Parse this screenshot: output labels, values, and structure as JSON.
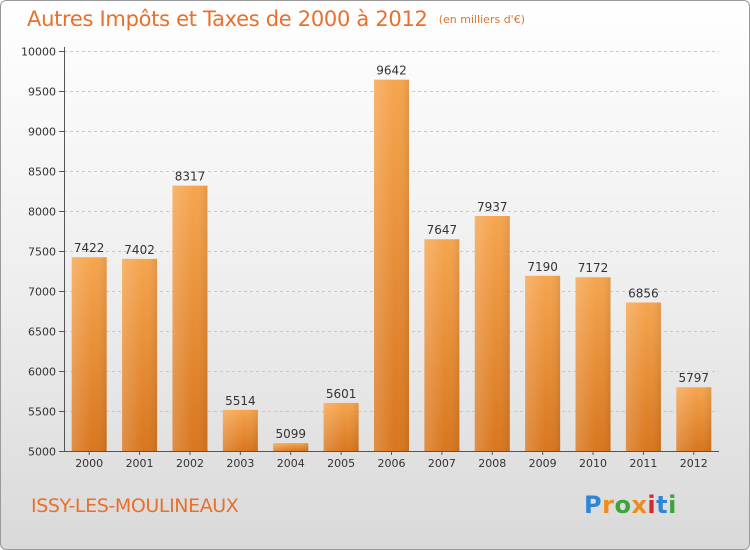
{
  "title": "Autres Impôts et Taxes de 2000 à 2012",
  "subtitle": "(en milliers d'€)",
  "city": "ISSY-LES-MOULINEAUX",
  "logo": {
    "text": "Proxiti",
    "letters": [
      "P",
      "r",
      "o",
      "x",
      "i",
      "t",
      "i"
    ],
    "colors": [
      "#2e86d6",
      "#f08c1a",
      "#3aa53a",
      "#f08c1a",
      "#d42a2a",
      "#2e86d6",
      "#3aa53a"
    ]
  },
  "colors": {
    "title": "#e8702a",
    "bar_top": "#f6a54e",
    "bar_bottom": "#d8761e",
    "axis": "#555555",
    "grid": "#c8c8c8"
  },
  "chart_data": {
    "type": "bar",
    "categories": [
      "2000",
      "2001",
      "2002",
      "2003",
      "2004",
      "2005",
      "2006",
      "2007",
      "2008",
      "2009",
      "2010",
      "2011",
      "2012"
    ],
    "values": [
      7422,
      7402,
      8317,
      5514,
      5099,
      5601,
      9642,
      7647,
      7937,
      7190,
      7172,
      6856,
      5797
    ],
    "ylim": [
      5000,
      10000
    ],
    "yticks": [
      5000,
      5500,
      6000,
      6500,
      7000,
      7500,
      8000,
      8500,
      9000,
      9500,
      10000
    ],
    "grid": true,
    "data_labels": true
  }
}
